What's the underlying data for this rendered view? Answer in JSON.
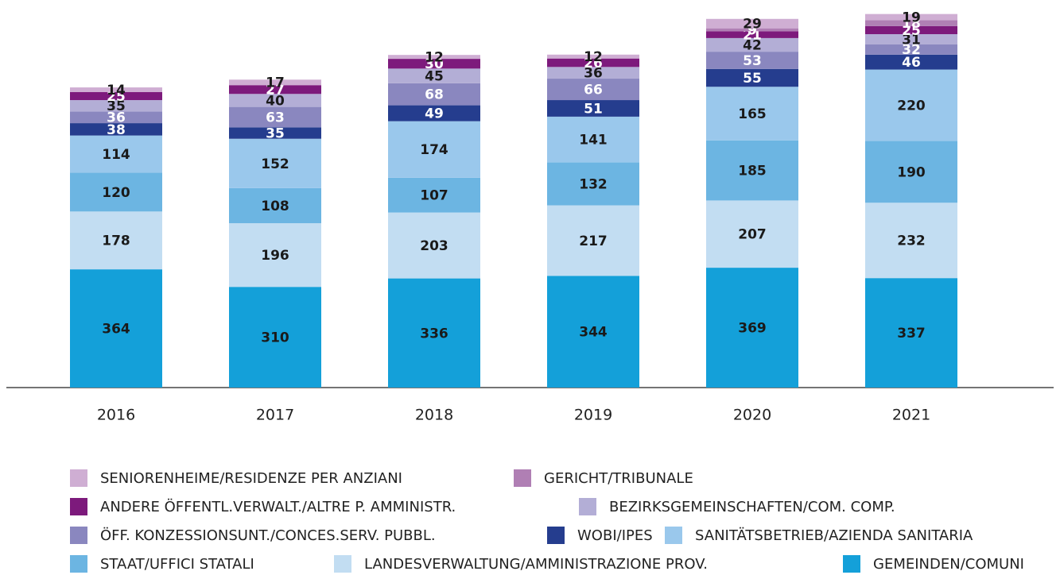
{
  "chart_data": {
    "type": "stacked-bar",
    "categories": [
      "2016",
      "2017",
      "2018",
      "2019",
      "2020",
      "2021"
    ],
    "series": [
      {
        "name": "GEMEINDEN/COMUNI",
        "color": "#14a0d9",
        "values": [
          364,
          310,
          336,
          344,
          369,
          337
        ]
      },
      {
        "name": "LANDESVERWALTUNG/AMMINISTRAZIONE PROV.",
        "color": "#c2ddf2",
        "values": [
          178,
          196,
          203,
          217,
          207,
          232
        ]
      },
      {
        "name": "STAAT/UFFICI STATALI",
        "color": "#6cb5e2",
        "values": [
          120,
          108,
          107,
          132,
          185,
          190
        ]
      },
      {
        "name": "SANITÄTSBETRIEB/AZIENDA SANITARIA",
        "color": "#9ac8ec",
        "values": [
          114,
          152,
          174,
          141,
          165,
          220
        ]
      },
      {
        "name": "WOBI/IPES",
        "color": "#253d8e",
        "values": [
          38,
          35,
          49,
          51,
          55,
          46
        ]
      },
      {
        "name": "ÖFF. KONZESSIONSUNT./CONCES.SERV. PUBBL.",
        "color": "#8a87bf",
        "values": [
          36,
          63,
          68,
          66,
          53,
          32
        ]
      },
      {
        "name": "BEZIRKSGEMEINSCHAFTEN/COM. COMP.",
        "color": "#b3aed6",
        "values": [
          35,
          40,
          45,
          36,
          42,
          31
        ]
      },
      {
        "name": "ANDERE ÖFFENTL.VERWALT./ALTRE P. AMMINISTR.",
        "color": "#7d1a7c",
        "values": [
          25,
          27,
          30,
          26,
          21,
          25
        ]
      },
      {
        "name": "GERICHT/TRIBUNALE",
        "color": "#b07fb4",
        "values": [
          null,
          null,
          null,
          null,
          9,
          18
        ]
      },
      {
        "name": "SENIORENHEIME/RESIDENZE PER ANZIANI",
        "color": "#cfaed3",
        "values": [
          14,
          17,
          12,
          12,
          29,
          19
        ]
      }
    ]
  }
}
